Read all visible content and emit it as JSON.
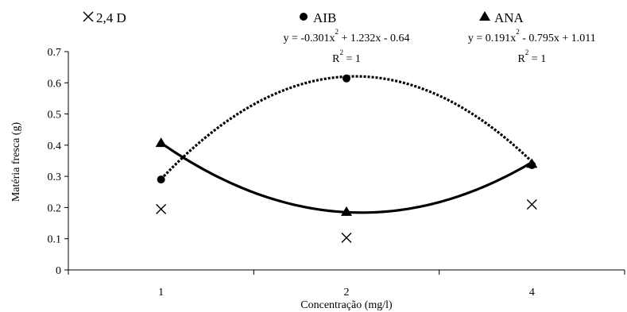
{
  "chart_data": {
    "type": "scatter",
    "title": "",
    "xlabel": "Concentração (mg/l)",
    "ylabel": "Matéria fresca (g)",
    "categories": [
      "1",
      "2",
      "4"
    ],
    "ylim": [
      0,
      0.7
    ],
    "yticks": [
      "0",
      "0.1",
      "0.2",
      "0.3",
      "0.4",
      "0.5",
      "0.6",
      "0.7"
    ],
    "grid": false,
    "legend_position": "top",
    "series": [
      {
        "name": "2,4 D",
        "marker": "x",
        "values": [
          0.195,
          0.103,
          0.21
        ],
        "trendline": null
      },
      {
        "name": "AIB",
        "marker": "circle",
        "values": [
          0.29,
          0.614,
          0.336
        ],
        "trendline": {
          "style": "dotted",
          "a": -0.301,
          "b": 1.232,
          "c": -0.64,
          "equation": {
            "pre": "y = -0.301x",
            "exp": "2",
            "post": " + 1.232x - 0.64"
          },
          "r2": {
            "pre": "R",
            "exp": "2",
            "post": " = 1"
          }
        }
      },
      {
        "name": "ANA",
        "marker": "triangle",
        "values": [
          0.407,
          0.186,
          0.34
        ],
        "trendline": {
          "style": "solid",
          "a": 0.191,
          "b": -0.795,
          "c": 1.011,
          "equation": {
            "pre": "y = 0.191x",
            "exp": "2",
            "post": " - 0.795x + 1.011"
          },
          "r2": {
            "pre": "R",
            "exp": "2",
            "post": " = 1"
          }
        }
      }
    ]
  }
}
